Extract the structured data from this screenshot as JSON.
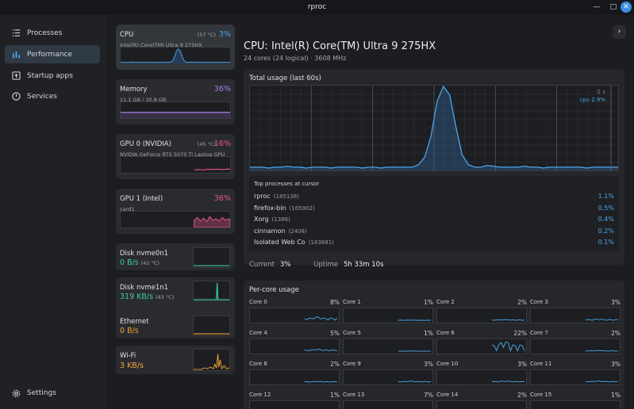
{
  "window": {
    "title": "rproc"
  },
  "sidebar": {
    "items": [
      {
        "label": "Processes",
        "icon": "list-icon"
      },
      {
        "label": "Performance",
        "icon": "bar-chart-icon"
      },
      {
        "label": "Startup apps",
        "icon": "startup-icon"
      },
      {
        "label": "Services",
        "icon": "power-icon"
      }
    ],
    "settings_label": "Settings"
  },
  "devices": [
    {
      "name": "CPU",
      "temp": "(57 °C)",
      "pct": "3%",
      "sub": "Intel(R) Core(TM) Ultra 9 275HX",
      "color": "#4aa6ec"
    },
    {
      "name": "Memory",
      "pct": "36%",
      "sub": "11.1 GB / 30.8 GB",
      "color": "#a97ee8"
    },
    {
      "name": "GPU 0 (NVIDIA)",
      "temp": "(45 °C)",
      "pct": "16%",
      "sub": "NVIDIA GeForce RTX 5070 Ti Laptop GPU",
      "color": "#e8578c"
    },
    {
      "name": "GPU 1 (Intel)",
      "pct": "36%",
      "sub": "card1",
      "color": "#e8578c"
    },
    {
      "name": "Disk nvme0n1",
      "val": "0 B/s",
      "temp": "(42 °C)",
      "color": "#3ecf9a"
    },
    {
      "name": "Disk nvme1n1",
      "val": "319 KB/s",
      "temp": "(43 °C)",
      "color": "#3ecf9a"
    },
    {
      "name": "Ethernet",
      "val": "0 B/s",
      "color": "#f0a43a"
    },
    {
      "name": "Wi-Fi",
      "val": "3 KB/s",
      "color": "#f0a43a"
    }
  ],
  "main": {
    "title": "CPU: Intel(R) Core(TM) Ultra 9 275HX",
    "subtitle": "24 cores (24 logical) · 3608 MHz",
    "usage_title": "Total usage (last 60s)",
    "cursor_time": "-2 s",
    "cursor_legend": "cpu  2.9%",
    "usage_series": [
      3,
      3,
      3,
      2,
      3,
      3,
      4,
      3,
      3,
      2,
      3,
      3,
      3,
      2,
      3,
      3,
      3,
      3,
      2,
      3,
      3,
      2,
      3,
      3,
      3,
      3,
      3,
      6,
      15,
      40,
      82,
      100,
      90,
      52,
      18,
      6,
      3,
      3,
      5,
      4,
      3,
      3,
      3,
      3,
      4,
      3,
      3,
      2,
      3,
      3,
      3,
      3,
      3,
      3,
      2,
      3,
      3,
      3,
      3,
      3
    ],
    "top_processes_header": "Top processes at cursor",
    "processes": [
      {
        "name": "rproc",
        "pid": "(185138)",
        "pct": "1.1%"
      },
      {
        "name": "firefox-bin",
        "pid": "(165902)",
        "pct": "0.5%"
      },
      {
        "name": "Xorg",
        "pid": "(1386)",
        "pct": "0.4%"
      },
      {
        "name": "cinnamon",
        "pid": "(2408)",
        "pct": "0.2%"
      },
      {
        "name": "Isolated Web Co",
        "pid": "(183681)",
        "pct": "0.1%"
      }
    ],
    "current_label": "Current",
    "current_value": "3%",
    "uptime_label": "Uptime",
    "uptime_value": "5h 33m 10s",
    "per_core_title": "Per-core usage",
    "cores": [
      {
        "name": "Core 0",
        "pct": "8%"
      },
      {
        "name": "Core 1",
        "pct": "1%"
      },
      {
        "name": "Core 2",
        "pct": "2%"
      },
      {
        "name": "Core 3",
        "pct": "3%"
      },
      {
        "name": "Core 4",
        "pct": "5%"
      },
      {
        "name": "Core 5",
        "pct": "1%"
      },
      {
        "name": "Core 6",
        "pct": "22%"
      },
      {
        "name": "Core 7",
        "pct": "2%"
      },
      {
        "name": "Core 8",
        "pct": "2%"
      },
      {
        "name": "Core 9",
        "pct": "3%"
      },
      {
        "name": "Core 10",
        "pct": "3%"
      },
      {
        "name": "Core 11",
        "pct": "3%"
      },
      {
        "name": "Core 12",
        "pct": "1%"
      },
      {
        "name": "Core 13",
        "pct": "7%"
      },
      {
        "name": "Core 14",
        "pct": "2%"
      },
      {
        "name": "Core 15",
        "pct": "1%"
      }
    ]
  }
}
